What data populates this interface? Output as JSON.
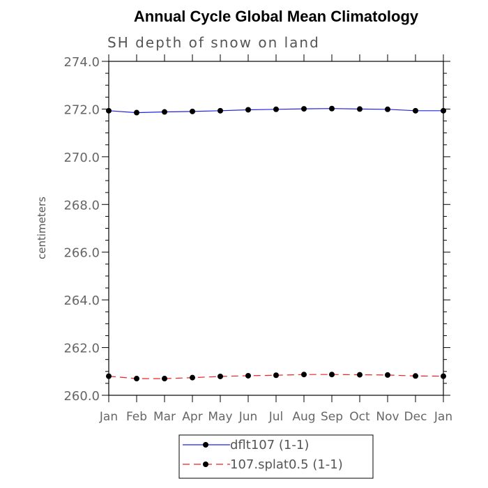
{
  "chart_data": {
    "type": "line",
    "title": "Annual Cycle Global Mean Climatology",
    "subtitle": "SH depth of snow on land",
    "xlabel": "",
    "ylabel": "centimeters",
    "categories": [
      "Jan",
      "Feb",
      "Mar",
      "Apr",
      "May",
      "Jun",
      "Jul",
      "Aug",
      "Sep",
      "Oct",
      "Nov",
      "Dec",
      "Jan"
    ],
    "ylim": [
      260.0,
      274.0
    ],
    "yticks": [
      "260.0",
      "262.0",
      "264.0",
      "266.0",
      "268.0",
      "270.0",
      "272.0",
      "274.0"
    ],
    "legend_position": "bottom-center",
    "series": [
      {
        "name": "dflt107 (1-1)",
        "color": "#2222dd",
        "dash": "solid",
        "values": [
          271.93,
          271.85,
          271.88,
          271.9,
          271.93,
          271.97,
          271.99,
          272.01,
          272.02,
          272.0,
          271.99,
          271.93,
          271.93
        ]
      },
      {
        "name": "107.splat0.5 (1-1)",
        "color": "#ee2222",
        "dash": "dashed",
        "values": [
          260.8,
          260.7,
          260.7,
          260.74,
          260.79,
          260.82,
          260.84,
          260.87,
          260.87,
          260.86,
          260.85,
          260.81,
          260.8
        ]
      }
    ]
  }
}
